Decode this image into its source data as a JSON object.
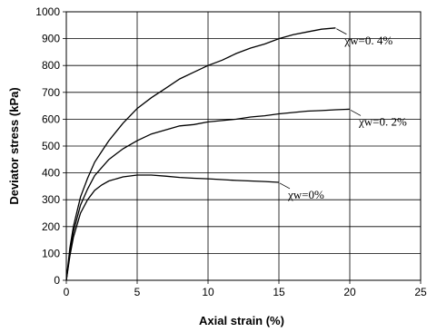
{
  "chart_data": {
    "type": "line",
    "title": "",
    "xlabel": "Axial strain (%)",
    "ylabel": "Deviator stress (kPa)",
    "xlim": [
      0,
      25
    ],
    "ylim": [
      0,
      1000
    ],
    "xticks": [
      "0",
      "5",
      "10",
      "15",
      "20",
      "25"
    ],
    "yticks": [
      "0",
      "100",
      "200",
      "300",
      "400",
      "500",
      "600",
      "700",
      "800",
      "900",
      "1000"
    ],
    "grid": true,
    "series": [
      {
        "name": "χw=0. 4%",
        "x": [
          0,
          0.25,
          0.5,
          1,
          1.5,
          2,
          2.5,
          3,
          4,
          5,
          6,
          7,
          8,
          9,
          10,
          11,
          12,
          13,
          14,
          15,
          16,
          17,
          18,
          19
        ],
        "y": [
          0,
          120,
          200,
          310,
          380,
          440,
          480,
          520,
          585,
          640,
          680,
          715,
          750,
          775,
          800,
          820,
          845,
          865,
          880,
          900,
          915,
          925,
          935,
          940
        ]
      },
      {
        "name": "χw=0. 2%",
        "x": [
          0,
          0.25,
          0.5,
          1,
          1.5,
          2,
          2.5,
          3,
          4,
          5,
          6,
          7,
          8,
          9,
          10,
          11,
          12,
          13,
          14,
          15,
          16,
          17,
          18,
          19,
          20
        ],
        "y": [
          0,
          100,
          180,
          280,
          340,
          390,
          420,
          450,
          490,
          520,
          545,
          560,
          575,
          580,
          590,
          595,
          600,
          608,
          613,
          620,
          625,
          630,
          632,
          635,
          637
        ]
      },
      {
        "name": "χw=0%",
        "x": [
          0,
          0.25,
          0.5,
          1,
          1.5,
          2,
          2.5,
          3,
          4,
          5,
          6,
          7,
          8,
          9,
          10,
          11,
          12,
          13,
          14,
          15
        ],
        "y": [
          0,
          90,
          160,
          250,
          300,
          335,
          355,
          370,
          385,
          392,
          392,
          388,
          383,
          380,
          378,
          375,
          372,
          370,
          368,
          365
        ]
      }
    ]
  }
}
